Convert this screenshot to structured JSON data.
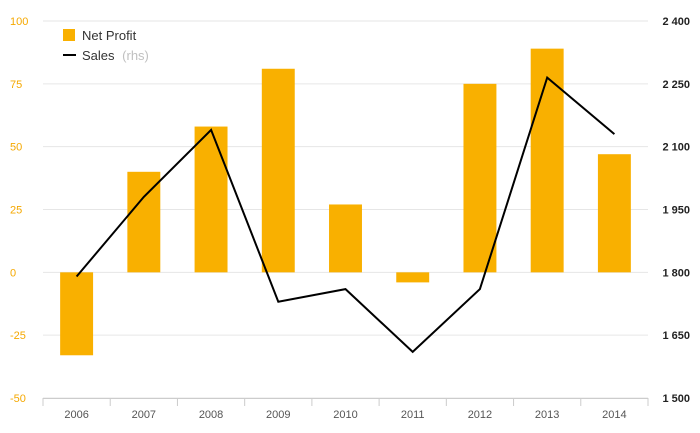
{
  "chart_data": {
    "type": "bar+line",
    "categories": [
      "2006",
      "2007",
      "2008",
      "2009",
      "2010",
      "2011",
      "2012",
      "2013",
      "2014"
    ],
    "series": [
      {
        "name": "Net Profit",
        "type": "bar",
        "axis": "left",
        "color": "#f9b000",
        "values": [
          -33,
          40,
          58,
          81,
          27,
          -4,
          75,
          89,
          47
        ]
      },
      {
        "name": "Sales",
        "type": "line",
        "axis": "right",
        "color": "#000000",
        "values": [
          1790,
          1980,
          2140,
          1730,
          1760,
          1610,
          1760,
          2265,
          2130
        ]
      }
    ],
    "legend": {
      "position": "top-left",
      "items": [
        {
          "label": "Net Profit",
          "suffix": ""
        },
        {
          "label": "Sales",
          "suffix": "(rhs)"
        }
      ]
    },
    "left_axis": {
      "ylim": [
        -50,
        100
      ],
      "ticks": [
        100,
        75,
        50,
        25,
        0,
        -25,
        -50
      ],
      "tick_labels": [
        "100",
        "75",
        "50",
        "25",
        "0",
        "-25",
        "-50"
      ],
      "color": "#f5a800"
    },
    "right_axis": {
      "ylim": [
        1500,
        2400
      ],
      "ticks": [
        2400,
        2250,
        2100,
        1950,
        1800,
        1650,
        1500
      ],
      "tick_labels": [
        "2 400",
        "2 250",
        "2 100",
        "1 950",
        "1 800",
        "1 650",
        "1 500"
      ],
      "color": "#222222"
    },
    "grid": true
  }
}
